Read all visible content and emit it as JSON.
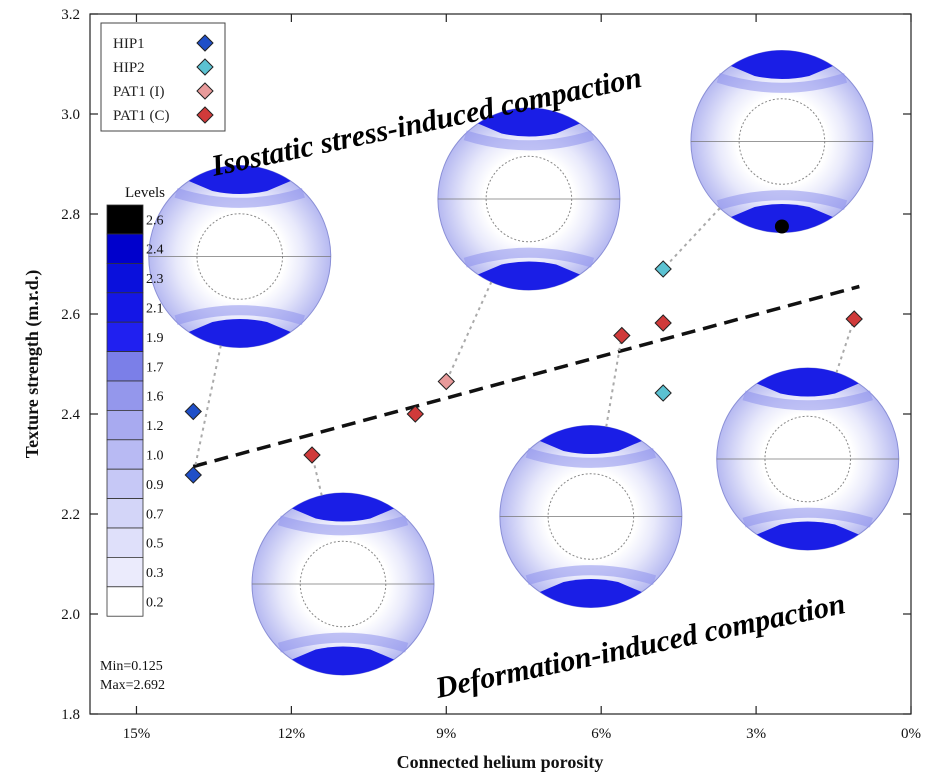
{
  "chart_data": {
    "type": "scatter",
    "xlabel": "Connected helium porosity",
    "ylabel": "Texture strength (m.r.d.)",
    "xlim": [
      15.9,
      0
    ],
    "xticks": [
      15,
      12,
      9,
      6,
      3,
      0
    ],
    "xtick_labels": [
      "15%",
      "12%",
      "9%",
      "6%",
      "3%",
      "0%"
    ],
    "ylim": [
      1.8,
      3.2
    ],
    "yticks": [
      1.8,
      2.0,
      2.2,
      2.4,
      2.6,
      2.8,
      3.0,
      3.2
    ],
    "ytick_labels": [
      "1.8",
      "2.0",
      "2.2",
      "2.4",
      "2.6",
      "2.8",
      "3.0",
      "3.2"
    ],
    "grid": false,
    "legend_position": "top-left",
    "series": [
      {
        "name": "HIP1",
        "color": "#1f4fc8",
        "x": [
          13.9,
          13.9
        ],
        "y": [
          2.405,
          2.278
        ]
      },
      {
        "name": "HIP2",
        "color": "#5bc2d2",
        "x": [
          4.8,
          4.8
        ],
        "y": [
          2.69,
          2.442
        ]
      },
      {
        "name": "PAT1 (I)",
        "color": "#e89a9a",
        "x": [
          9.0
        ],
        "y": [
          2.465
        ]
      },
      {
        "name": "PAT1 (C)",
        "color": "#d03a3a",
        "x": [
          11.6,
          9.6,
          5.6,
          4.8,
          1.1
        ],
        "y": [
          2.318,
          2.4,
          2.557,
          2.582,
          2.59
        ]
      }
    ],
    "trendline": {
      "style": "dashed",
      "x": [
        13.9,
        1.0
      ],
      "y": [
        2.295,
        2.655
      ]
    },
    "annotations": {
      "top": "Isostatic stress-induced compaction",
      "bottom": "Deformation-induced compaction"
    },
    "pole_figures": [
      {
        "cx": 13.0,
        "cy": 2.715,
        "pole": "blue",
        "link": [
          13.9,
          2.278
        ]
      },
      {
        "cx": 7.4,
        "cy": 2.83,
        "pole": "blue",
        "link": [
          9.0,
          2.465
        ]
      },
      {
        "cx": 2.5,
        "cy": 2.945,
        "pole": "black",
        "link": [
          4.8,
          2.69
        ]
      },
      {
        "cx": 11.0,
        "cy": 2.06,
        "pole": "blue",
        "link": [
          11.6,
          2.318
        ]
      },
      {
        "cx": 6.2,
        "cy": 2.195,
        "pole": "blue",
        "link": [
          5.6,
          2.557
        ]
      },
      {
        "cx": 2.0,
        "cy": 2.31,
        "pole": "blue",
        "link": [
          1.1,
          2.59
        ]
      }
    ],
    "colorbar": {
      "title": "Levels",
      "levels": [
        "2.6",
        "2.4",
        "2.3",
        "2.1",
        "1.9",
        "1.7",
        "1.6",
        "1.2",
        "1.0",
        "0.9",
        "0.7",
        "0.5",
        "0.3",
        "0.2"
      ],
      "colors": [
        "#000000",
        "#0000cc",
        "#0a10dc",
        "#1416e6",
        "#2020f0",
        "#7b7fe8",
        "#9497ec",
        "#a8aaf0",
        "#b8baf3",
        "#c6c8f6",
        "#d3d5f8",
        "#dfe0fa",
        "#ebebfc",
        "#ffffff"
      ],
      "min_label": "Min=0.125",
      "max_label": "Max=2.692"
    }
  }
}
